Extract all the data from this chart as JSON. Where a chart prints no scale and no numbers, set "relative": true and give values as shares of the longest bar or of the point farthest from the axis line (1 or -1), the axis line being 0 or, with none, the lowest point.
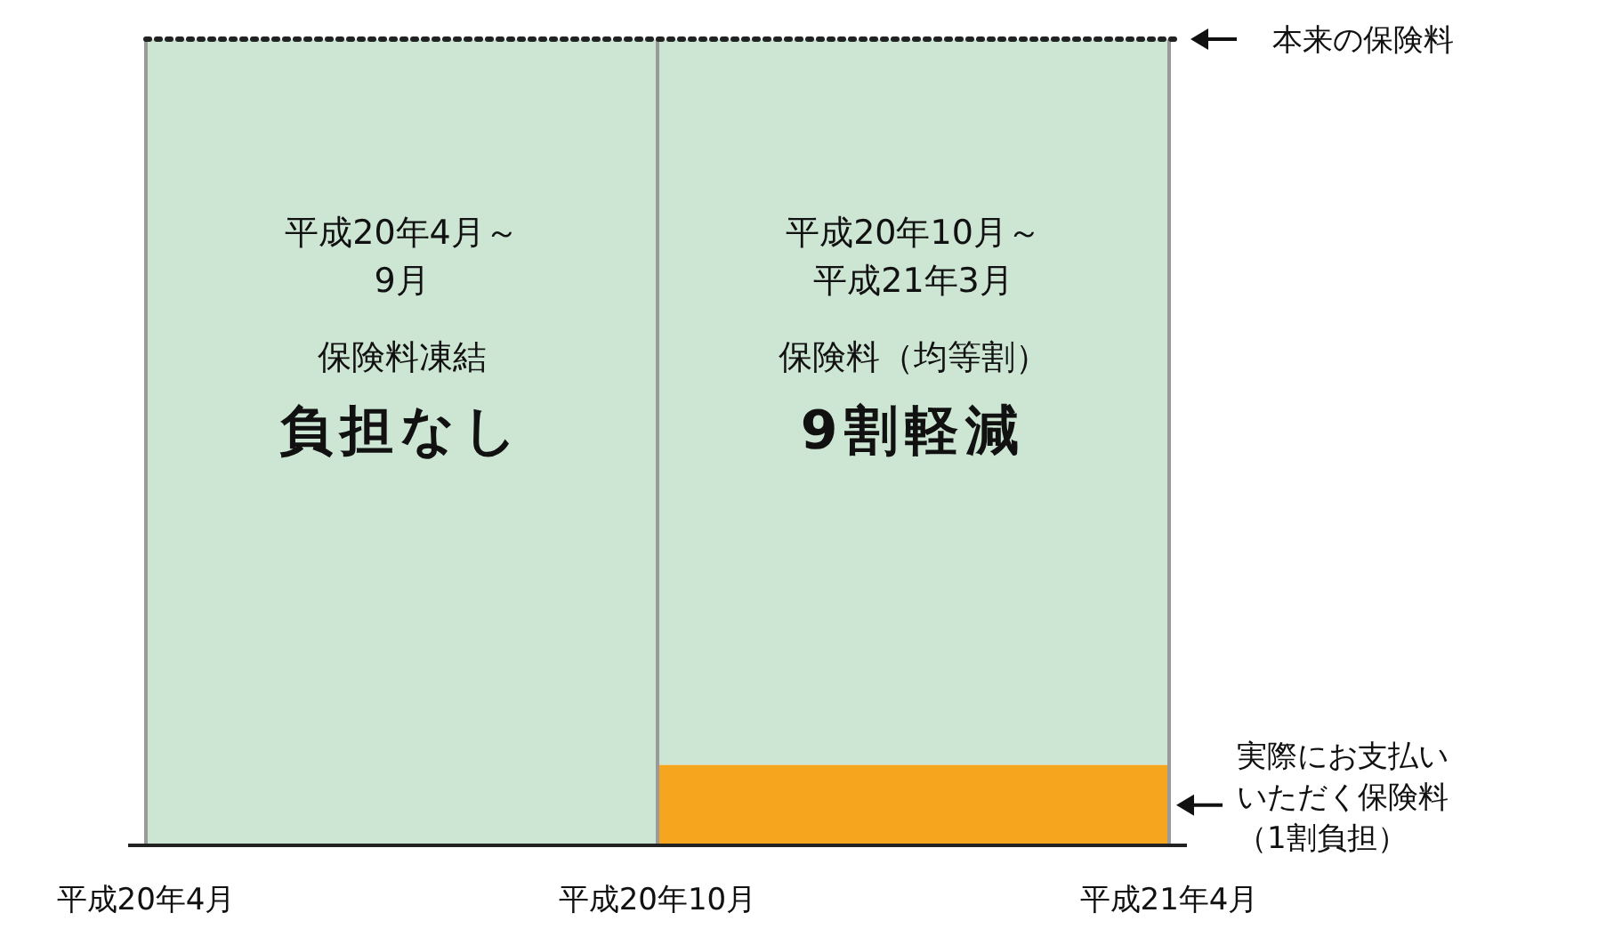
{
  "chart_data": {
    "type": "bar",
    "relative": true,
    "stacked": true,
    "categories": [
      null,
      null
    ],
    "grid": "x",
    "series": [
      {
        "color": "#f5a51e",
        "values": [
          null,
          0.1
        ]
      },
      {
        "color": "#cde6d4",
        "values": [
          1,
          0.9
        ]
      }
    ],
    "ref_lines": [
      {
        "axis": "y",
        "value": 1,
        "label": "本来の保険料",
        "line_style": "dotted",
        "color": "#222222"
      }
    ],
    "annotations": [
      "平成20年4月～9月",
      "保険料凍結",
      "負担なし",
      "平成20年10月～平成21年3月",
      "保険料（均等割）",
      "9割軽減",
      "平成20年4月",
      "平成20年10月",
      "平成21年4月",
      "実際にお支払いいただく保険料（1割負担）"
    ]
  }
}
